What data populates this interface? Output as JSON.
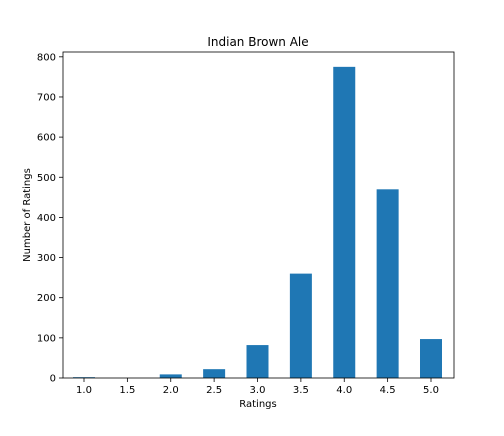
{
  "chart_data": {
    "type": "bar",
    "title": "Indian Brown Ale",
    "xlabel": "Ratings",
    "ylabel": "Number of Ratings",
    "categories": [
      "1.0",
      "1.5",
      "2.0",
      "2.5",
      "3.0",
      "3.5",
      "4.0",
      "4.5",
      "5.0"
    ],
    "values": [
      2,
      0,
      9,
      22,
      82,
      260,
      775,
      470,
      97
    ],
    "ylim": [
      0,
      812
    ],
    "yticks": [
      "0",
      "100",
      "200",
      "300",
      "400",
      "500",
      "600",
      "700",
      "800"
    ],
    "bar_color": "#1f77b4",
    "grid": false,
    "legend": "none"
  }
}
